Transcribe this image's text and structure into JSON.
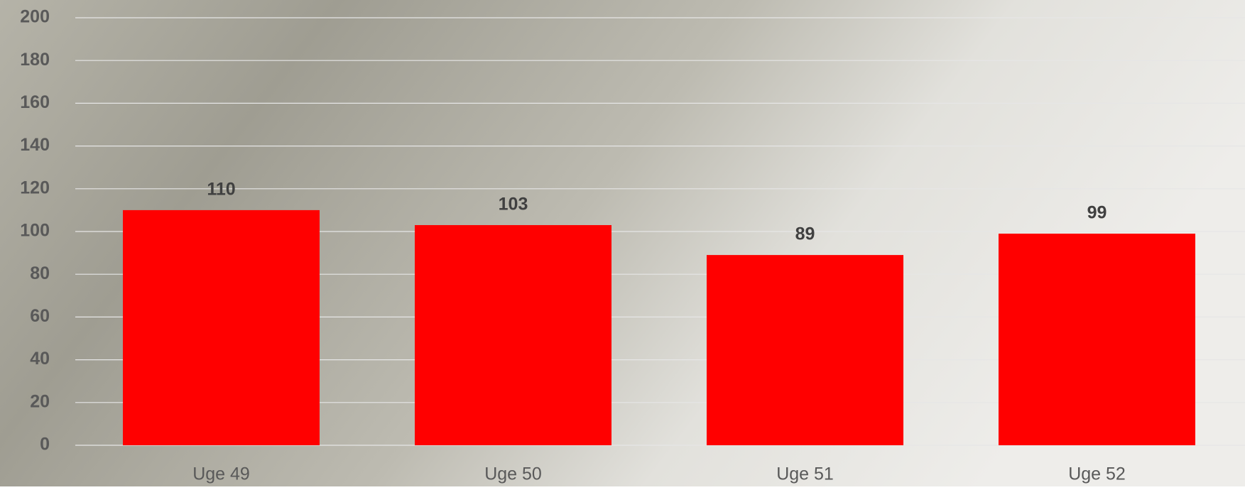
{
  "chart_data": {
    "type": "bar",
    "categories": [
      "Uge 49",
      "Uge 50",
      "Uge 51",
      "Uge 52"
    ],
    "values": [
      110,
      103,
      89,
      99
    ],
    "color": "#ff0000",
    "ylim": [
      0,
      200
    ],
    "yticks": [
      0,
      20,
      40,
      60,
      80,
      100,
      120,
      140,
      160,
      180,
      200
    ],
    "grid": true
  }
}
